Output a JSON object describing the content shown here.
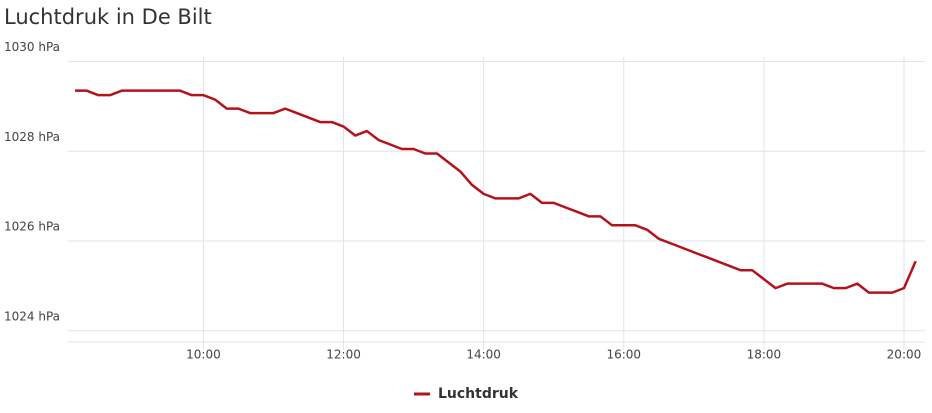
{
  "chart_data": {
    "type": "line",
    "title": "Luchtdruk in De Bilt",
    "x": [
      "08:10",
      "08:20",
      "08:30",
      "08:40",
      "08:50",
      "09:00",
      "09:10",
      "09:20",
      "09:30",
      "09:40",
      "09:50",
      "10:00",
      "10:10",
      "10:20",
      "10:30",
      "10:40",
      "10:50",
      "11:00",
      "11:10",
      "11:20",
      "11:30",
      "11:40",
      "11:50",
      "12:00",
      "12:10",
      "12:20",
      "12:30",
      "12:40",
      "12:50",
      "13:00",
      "13:10",
      "13:20",
      "13:30",
      "13:40",
      "13:50",
      "14:00",
      "14:10",
      "14:20",
      "14:30",
      "14:40",
      "14:50",
      "15:00",
      "15:10",
      "15:20",
      "15:30",
      "15:40",
      "15:50",
      "16:00",
      "16:10",
      "16:20",
      "16:30",
      "16:40",
      "16:50",
      "17:00",
      "17:10",
      "17:20",
      "17:30",
      "17:40",
      "17:50",
      "18:00",
      "18:10",
      "18:20",
      "18:30",
      "18:40",
      "18:50",
      "19:00",
      "19:10",
      "19:20",
      "19:30",
      "19:40",
      "19:50",
      "20:00",
      "20:10"
    ],
    "series": [
      {
        "name": "Luchtdruk",
        "color": "#b5121b",
        "values": [
          1029.35,
          1029.35,
          1029.25,
          1029.25,
          1029.35,
          1029.35,
          1029.35,
          1029.35,
          1029.35,
          1029.35,
          1029.25,
          1029.25,
          1029.15,
          1028.95,
          1028.95,
          1028.85,
          1028.85,
          1028.85,
          1028.95,
          1028.85,
          1028.75,
          1028.65,
          1028.65,
          1028.55,
          1028.35,
          1028.45,
          1028.25,
          1028.15,
          1028.05,
          1028.05,
          1027.95,
          1027.95,
          1027.75,
          1027.55,
          1027.25,
          1027.05,
          1026.95,
          1026.95,
          1026.95,
          1027.05,
          1026.85,
          1026.85,
          1026.75,
          1026.65,
          1026.55,
          1026.55,
          1026.35,
          1026.35,
          1026.35,
          1026.25,
          1026.05,
          1025.95,
          1025.85,
          1025.75,
          1025.65,
          1025.55,
          1025.45,
          1025.35,
          1025.35,
          1025.15,
          1024.95,
          1025.05,
          1025.05,
          1025.05,
          1025.05,
          1024.95,
          1024.95,
          1025.05,
          1024.85,
          1024.85,
          1024.85,
          1024.95,
          1025.55
        ]
      }
    ],
    "xlim": [
      "08:04",
      "20:18"
    ],
    "xticks": [
      "10:00",
      "12:00",
      "14:00",
      "16:00",
      "18:00",
      "20:00"
    ],
    "ylim": [
      1023.75,
      1030.1
    ],
    "yticks": [
      {
        "value": 1024,
        "label": "1024 hPa"
      },
      {
        "value": 1026,
        "label": "1026 hPa"
      },
      {
        "value": 1028,
        "label": "1028 hPa"
      },
      {
        "value": 1030,
        "label": "1030 hPa"
      }
    ],
    "grid": true,
    "legend": "bottom"
  }
}
